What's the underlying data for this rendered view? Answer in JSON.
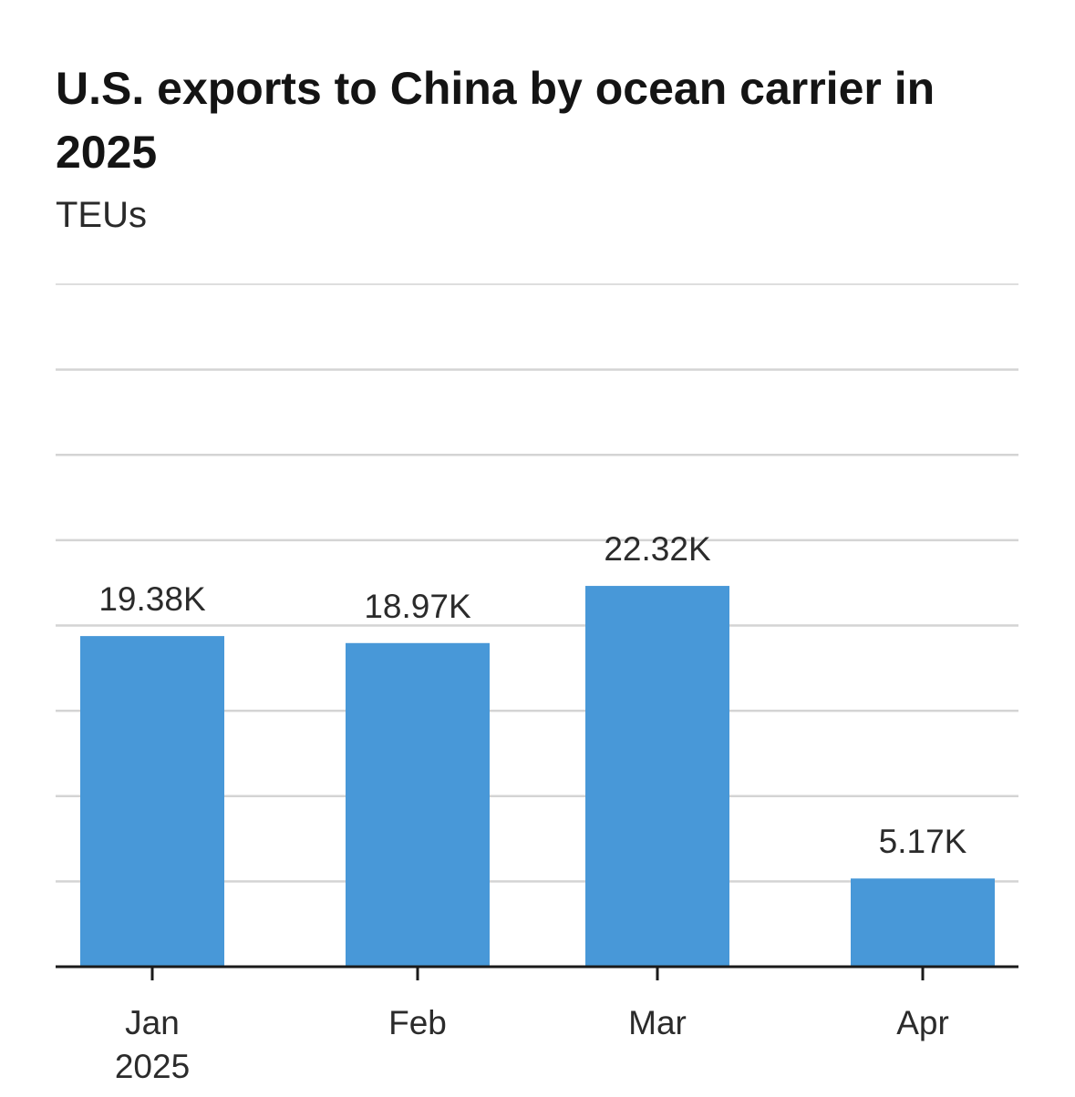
{
  "chart_data": {
    "type": "bar",
    "title": "U.S. exports to China by ocean carrier in 2025",
    "subtitle": "TEUs",
    "categories": [
      "Jan\n2025",
      "Feb",
      "Mar",
      "Apr"
    ],
    "values": [
      19380,
      18970,
      22320,
      5170
    ],
    "data_labels": [
      "19.38K",
      "18.97K",
      "22.32K",
      "5.17K"
    ],
    "xlabel": "",
    "ylabel": "",
    "ylim": [
      0,
      40000
    ],
    "grid": true,
    "y_tick_labels_shown": false,
    "bar_color": "#4898d8",
    "gridline_color": "#d4d4d4",
    "axis_color": "#1a1a1a"
  }
}
